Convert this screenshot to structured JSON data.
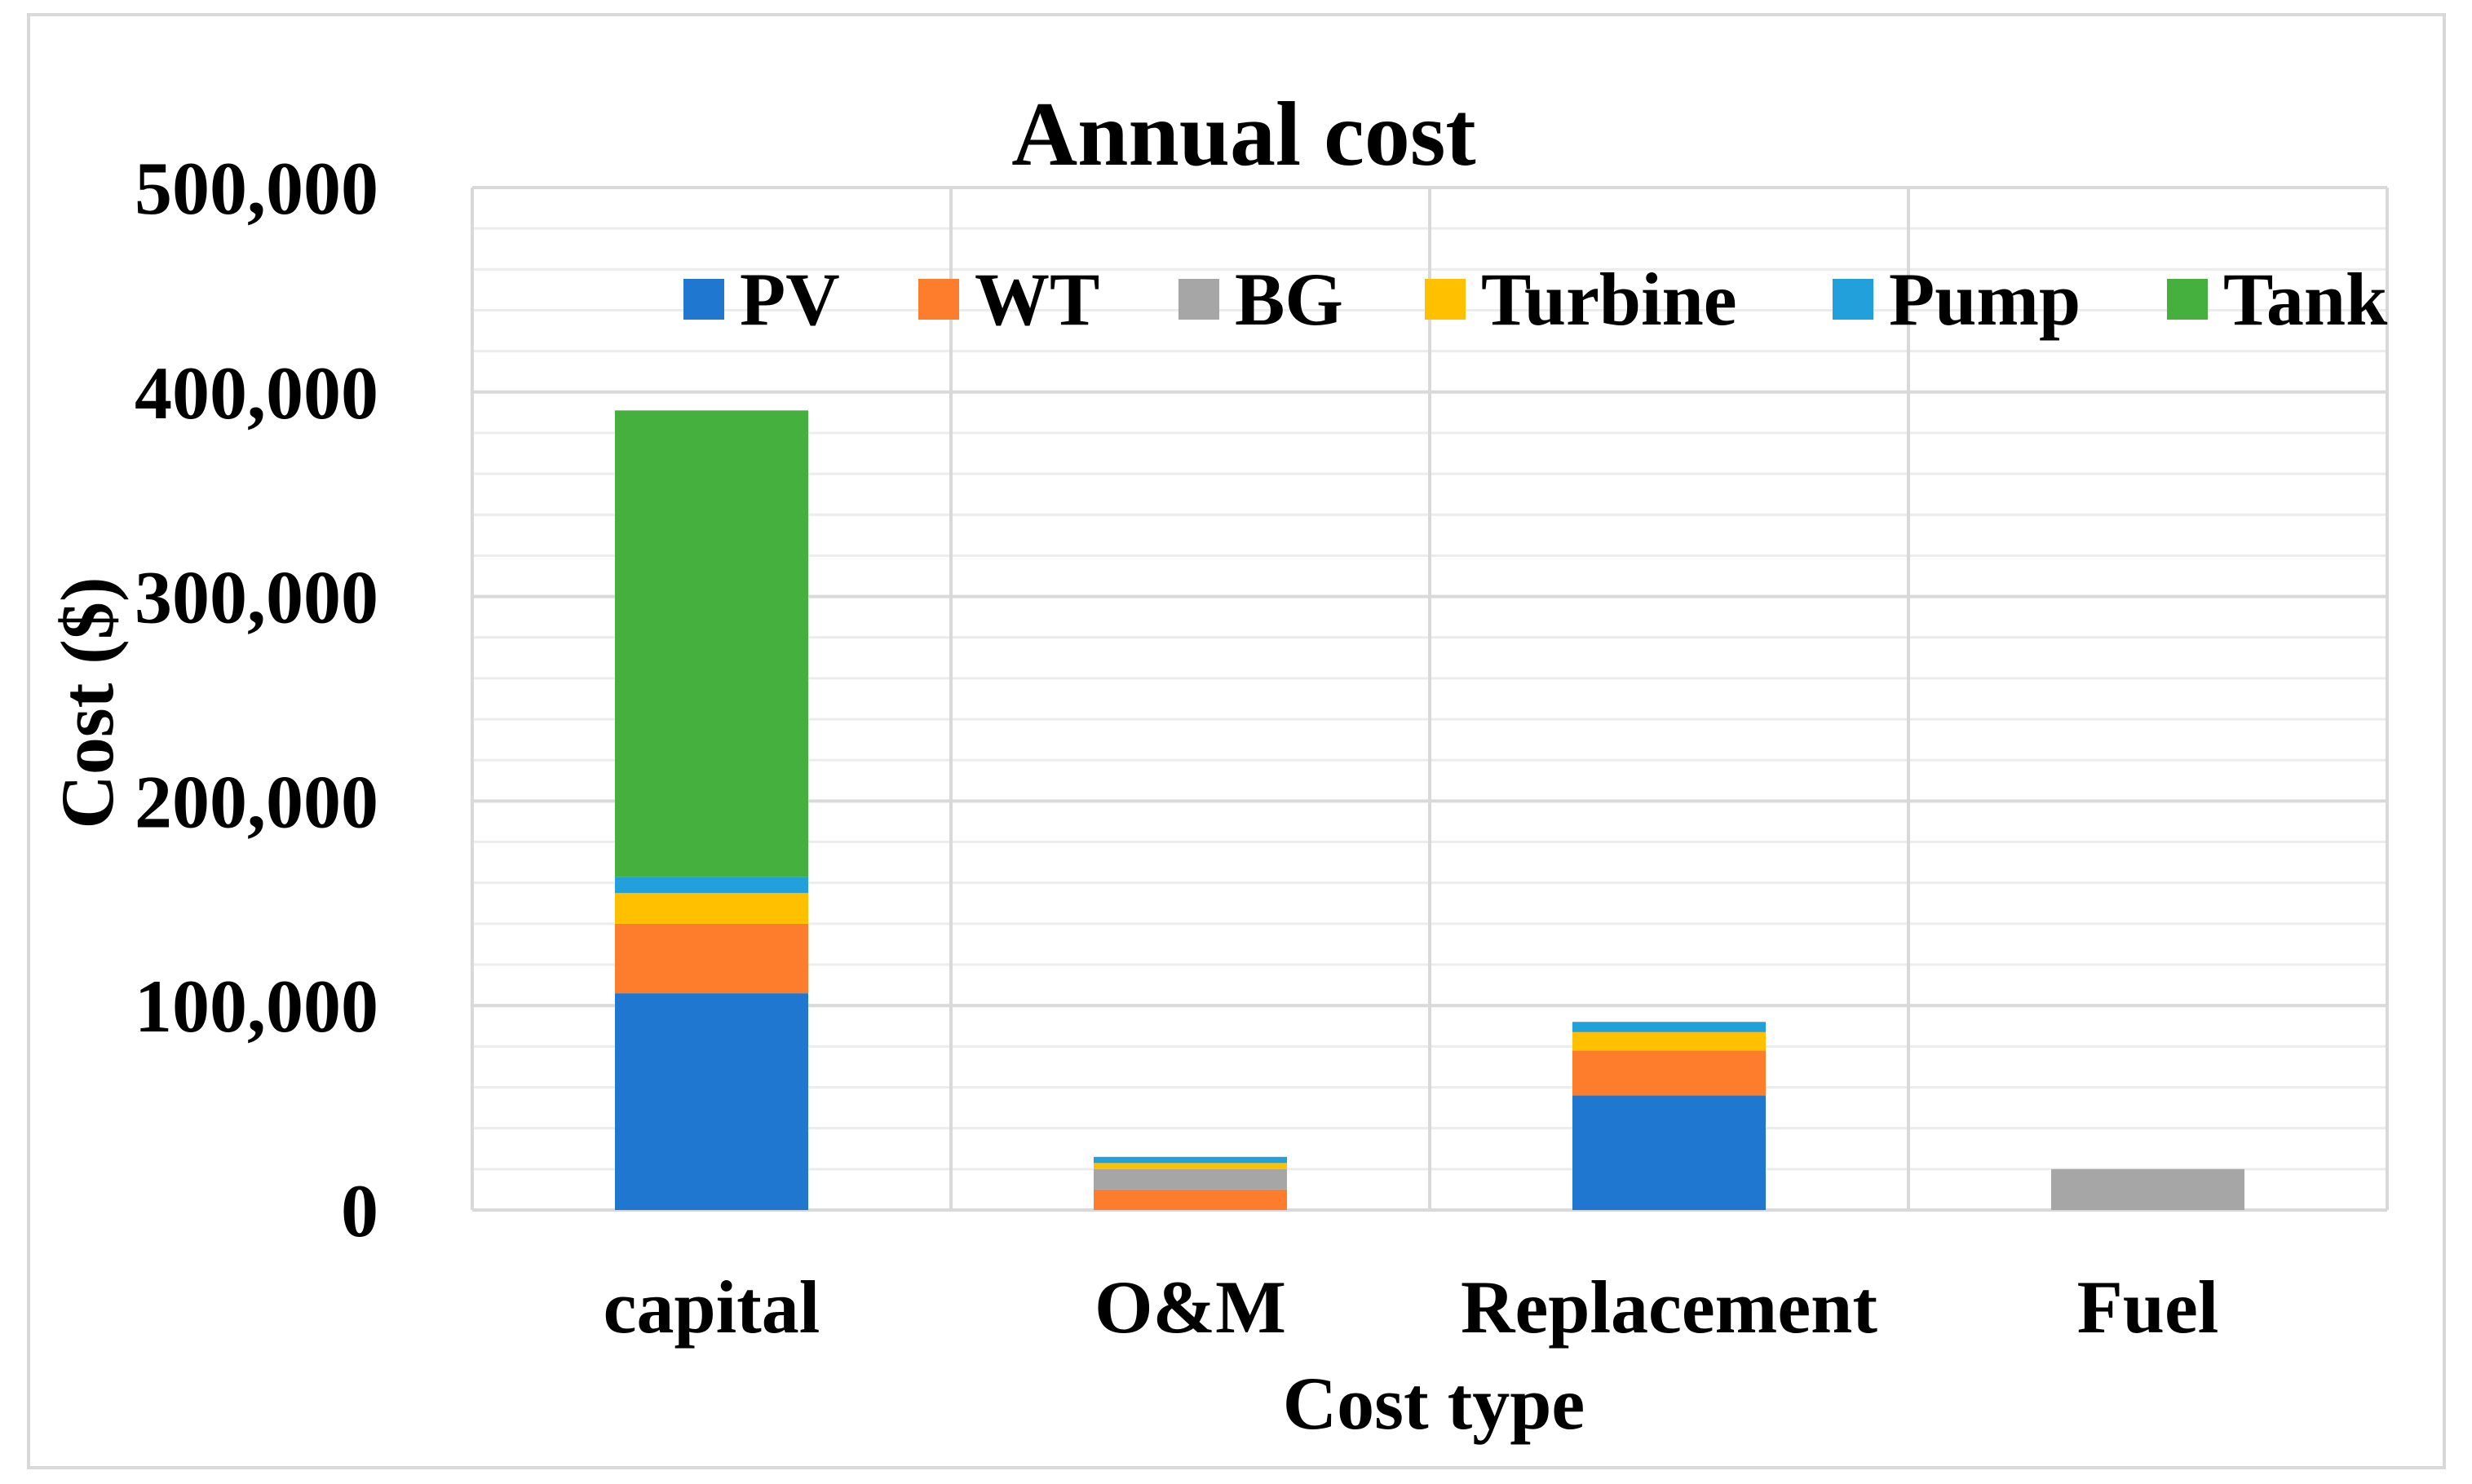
{
  "chart_data": {
    "type": "bar",
    "stacked": true,
    "title": "Annual cost",
    "xlabel": "Cost type",
    "ylabel": "Cost ($)",
    "ylim": [
      0,
      500000
    ],
    "yticks": [
      0,
      100000,
      200000,
      300000,
      400000,
      500000
    ],
    "ytick_labels": [
      "0",
      "100,000",
      "200,000",
      "300,000",
      "400,000",
      "500,000"
    ],
    "grid": true,
    "legend_position": "top-right",
    "categories": [
      "capital",
      "O&M",
      "Replacement",
      "Fuel"
    ],
    "series": [
      {
        "name": "PV",
        "color": "#1f77d0",
        "values": [
          106000,
          0,
          56000,
          0
        ]
      },
      {
        "name": "WT",
        "color": "#fd7d2c",
        "values": [
          34000,
          10000,
          22000,
          0
        ]
      },
      {
        "name": "BG",
        "color": "#a6a6a6",
        "values": [
          0,
          10000,
          0,
          20000
        ]
      },
      {
        "name": "Turbine",
        "color": "#ffc000",
        "values": [
          15000,
          3000,
          9000,
          0
        ]
      },
      {
        "name": "Pump",
        "color": "#21a0db",
        "values": [
          8000,
          3000,
          5000,
          0
        ]
      },
      {
        "name": "Tank",
        "color": "#46b03e",
        "values": [
          228000,
          0,
          0,
          0
        ]
      }
    ]
  }
}
